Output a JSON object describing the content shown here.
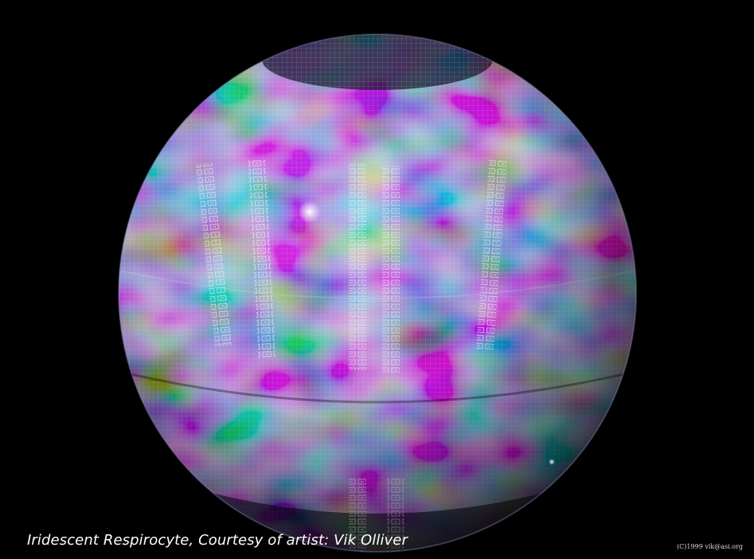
{
  "caption": "Iridescent Respirocyte, Courtesy of artist: Vik Olliver",
  "copyright": "(C)1999 vik@asi.org",
  "colors": {
    "background": "#000000",
    "caption_text": "#ffffff",
    "sphere_magenta": "#a040c0",
    "sphere_green": "#40c080",
    "sphere_blue": "#3050c0",
    "sphere_pink": "#e060a0"
  }
}
